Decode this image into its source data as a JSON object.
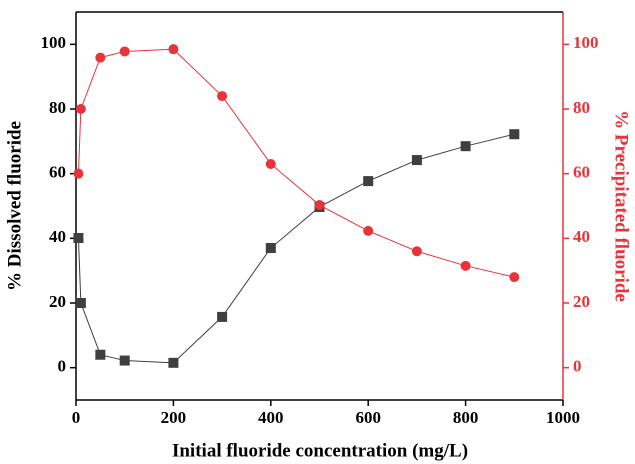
{
  "chart_data": {
    "type": "line",
    "xlabel": "Initial fluoride concentration (mg/L)",
    "ylabel": "% Dissolved fluoride",
    "y2label": "% Precipitated fluoride",
    "x": [
      5,
      10,
      50,
      100,
      200,
      300,
      400,
      500,
      600,
      700,
      800,
      900
    ],
    "series": [
      {
        "name": "% Dissolved fluoride",
        "color": "#3f3f3f",
        "marker": "square",
        "values": [
          40.1,
          20,
          4.0,
          2.2,
          1.5,
          15.7,
          37,
          49.7,
          57.7,
          64.2,
          68.5,
          72.2
        ]
      },
      {
        "name": "% Precipitated fluoride",
        "color": "#e8333a",
        "marker": "circle",
        "axis": "y2",
        "values": [
          60,
          80,
          95.9,
          97.8,
          98.5,
          84,
          63,
          50.3,
          42.3,
          36,
          31.5,
          28
        ]
      }
    ],
    "xlim": [
      0,
      1000
    ],
    "xticks": [
      0,
      200,
      400,
      600,
      800,
      1000
    ],
    "ylim": [
      -10,
      110
    ],
    "yticks": [
      0,
      20,
      40,
      60,
      80,
      100
    ],
    "y2lim": [
      -10,
      110
    ],
    "y2ticks": [
      0,
      20,
      40,
      60,
      80,
      100
    ],
    "y2color": "#e8333a"
  }
}
